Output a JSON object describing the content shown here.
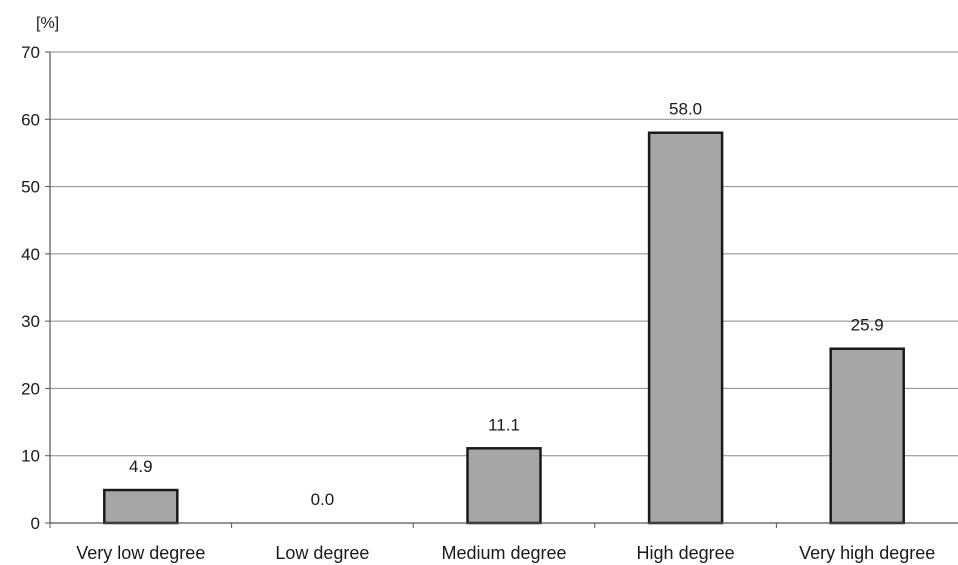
{
  "chart_data": {
    "type": "bar",
    "ylabel": "[%]",
    "categories": [
      "Very low degree",
      "Low degree",
      "Medium degree",
      "High degree",
      "Very high degree"
    ],
    "values": [
      4.9,
      0.0,
      11.1,
      58.0,
      25.9
    ],
    "value_labels": [
      "4.9",
      "0.0",
      "11.1",
      "58.0",
      "25.9"
    ],
    "ylim": [
      0,
      70
    ],
    "yticks": [
      0,
      10,
      20,
      30,
      40,
      50,
      60,
      70
    ],
    "grid": true,
    "legend": "none",
    "colors": {
      "bar_fill": "#a4a6a7",
      "bar_stroke": "#1a1a1a",
      "grid": "#888888",
      "axis": "#555555"
    }
  }
}
